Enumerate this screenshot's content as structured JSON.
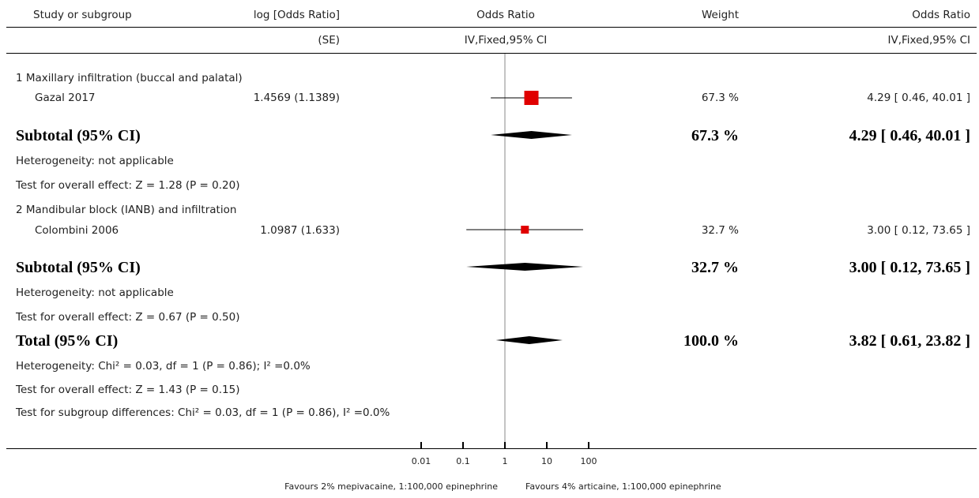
{
  "header": {
    "col1": "Study or subgroup",
    "col2a": "log [Odds Ratio]",
    "col2b": "(SE)",
    "col3a": "Odds Ratio",
    "col3b": "IV,Fixed,95% CI",
    "col4": "Weight",
    "col5a": "Odds Ratio",
    "col5b": "IV,Fixed,95% CI"
  },
  "rows": {
    "g1_title": "1 Maxillary infiltration (buccal and palatal)",
    "s1_name": "Gazal 2017",
    "s1_logse": "1.4569 (1.1389)",
    "s1_weight": "67.3 %",
    "s1_ci": "4.29 [ 0.46, 40.01 ]",
    "sub1_label": "Subtotal (95% CI)",
    "sub1_weight": "67.3 %",
    "sub1_ci": "4.29 [ 0.46, 40.01 ]",
    "het1": "Heterogeneity: not applicable",
    "test1": "Test for overall effect: Z = 1.28 (P = 0.20)",
    "g2_title": "2 Mandibular block (IANB) and infiltration",
    "s2_name": "Colombini 2006",
    "s2_logse": "1.0987 (1.633)",
    "s2_weight": "32.7 %",
    "s2_ci": "3.00 [ 0.12, 73.65 ]",
    "sub2_label": "Subtotal (95% CI)",
    "sub2_weight": "32.7 %",
    "sub2_ci": "3.00 [ 0.12, 73.65 ]",
    "het2": "Heterogeneity: not applicable",
    "test2": "Test for overall effect: Z = 0.67 (P = 0.50)",
    "total_label": "Total (95% CI)",
    "total_weight": "100.0 %",
    "total_ci": "3.82 [ 0.61, 23.82 ]",
    "het_total": "Heterogeneity: Chi² = 0.03, df = 1 (P = 0.86); I² =0.0%",
    "test_total": "Test for overall effect: Z = 1.43 (P = 0.15)",
    "test_sub": "Test for subgroup differences: Chi² = 0.03, df = 1 (P = 0.86), I² =0.0%"
  },
  "axis": {
    "ticks": [
      "0.01",
      "0.1",
      "1",
      "10",
      "100"
    ],
    "favours_left": "Favours 2% mepivacaine, 1:100,000 epinephrine",
    "favours_right": "Favours 4% articaine, 1:100,000 epinephrine"
  },
  "colors": {
    "study_marker": "#e00000",
    "diamond": "#000000",
    "null_line": "#888888"
  },
  "chart_data": {
    "type": "forest",
    "scale": "log",
    "xlim": [
      0.01,
      100
    ],
    "studies": [
      {
        "id": "s1",
        "name": "Gazal 2017",
        "or": 4.29,
        "lo": 0.46,
        "hi": 40.01,
        "weight": 67.3
      },
      {
        "id": "s2",
        "name": "Colombini 2006",
        "or": 3.0,
        "lo": 0.12,
        "hi": 73.65,
        "weight": 32.7
      }
    ],
    "summaries": [
      {
        "id": "sub1",
        "or": 4.29,
        "lo": 0.46,
        "hi": 40.01
      },
      {
        "id": "sub2",
        "or": 3.0,
        "lo": 0.12,
        "hi": 73.65
      },
      {
        "id": "total",
        "or": 3.82,
        "lo": 0.61,
        "hi": 23.82
      }
    ]
  }
}
